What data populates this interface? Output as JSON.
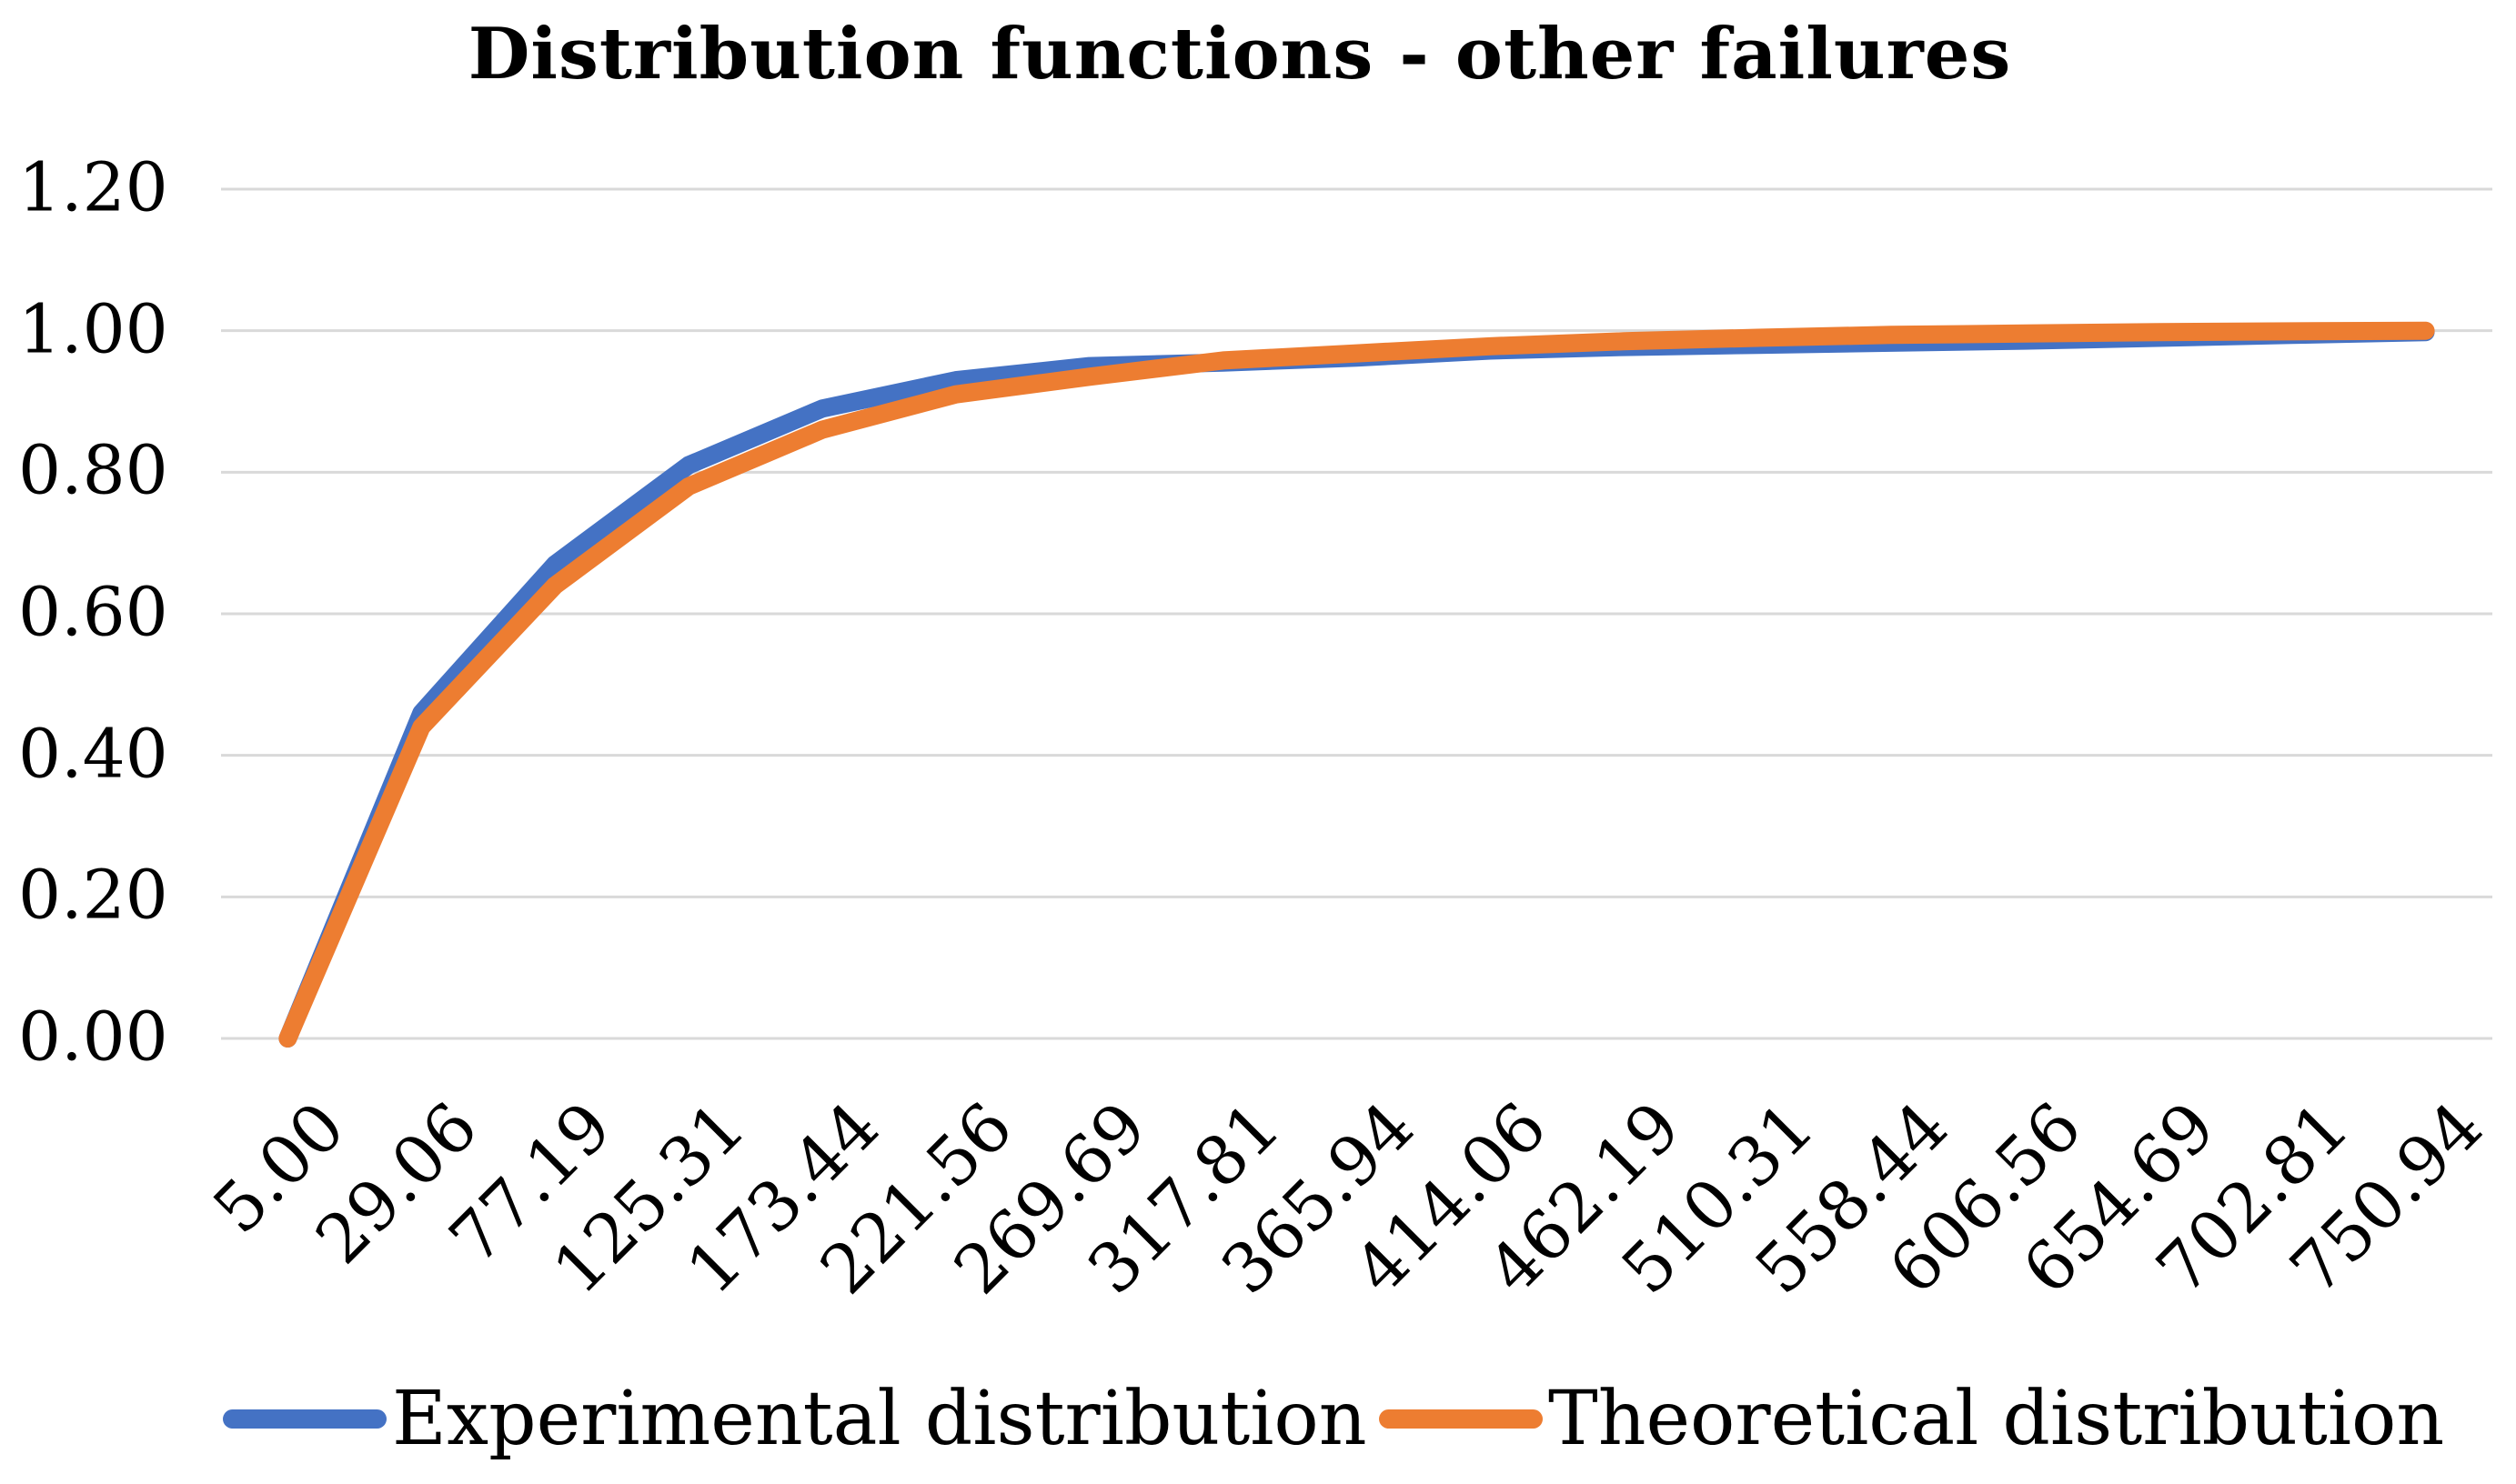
{
  "title": "Distribution functions - other failures",
  "colors": {
    "experimental": "#4472C4",
    "theoretical": "#ED7D31",
    "gridline": "#D9D9D9",
    "text": "#000000",
    "background": "#FFFFFF"
  },
  "y_axis": {
    "tick_labels": [
      "1.20",
      "1.00",
      "0.80",
      "0.60",
      "0.40",
      "0.20",
      "0.00"
    ]
  },
  "legend": {
    "items": [
      "Experimental distribution",
      "Theoretical distribution"
    ]
  },
  "chart_data": {
    "type": "line",
    "title": "Distribution functions - other failures",
    "categories": [
      "5.00",
      "29.06",
      "77.19",
      "125.31",
      "173.44",
      "221.56",
      "269.69",
      "317.81",
      "365.94",
      "414.06",
      "462.19",
      "510.31",
      "558.44",
      "606.56",
      "654.69",
      "702.81",
      "750.94"
    ],
    "series": [
      {
        "name": "Experimental distribution",
        "color": "#4472C4",
        "values": [
          0.0,
          0.46,
          0.67,
          0.81,
          0.89,
          0.93,
          0.95,
          0.955,
          0.962,
          0.972,
          0.977,
          0.98,
          0.983,
          0.986,
          0.99,
          0.994,
          0.998
        ]
      },
      {
        "name": "Theoretical distribution",
        "color": "#ED7D31",
        "values": [
          0.0,
          0.44,
          0.64,
          0.78,
          0.86,
          0.91,
          0.935,
          0.958,
          0.968,
          0.978,
          0.985,
          0.99,
          0.994,
          0.996,
          0.998,
          0.999,
          1.0
        ]
      }
    ],
    "xlabel": "",
    "ylabel": "",
    "ylim": [
      0,
      1.2
    ],
    "y_ticks": [
      1.2,
      1.0,
      0.8,
      0.6,
      0.4,
      0.2,
      0.0
    ],
    "grid": "horizontal",
    "legend_position": "bottom"
  }
}
